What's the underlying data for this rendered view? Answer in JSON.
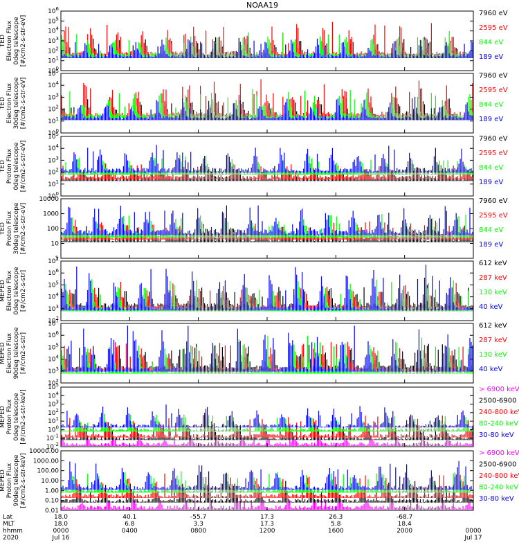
{
  "chart_data": {
    "type": "line",
    "title": "NOAA19",
    "x_axis": {
      "xlim": [
        "00:00",
        "24:00"
      ],
      "tick_hhmm": [
        "0000",
        "0400",
        "0800",
        "1200",
        "1600",
        "2000",
        "0000"
      ],
      "rows": [
        {
          "label": "Lat",
          "values": [
            "18.0",
            "40.1",
            "-55.7",
            "17.3",
            "26.3",
            "-68.7",
            ""
          ]
        },
        {
          "label": "MLT",
          "values": [
            "18.0",
            "6.8",
            "3.3",
            "17.3",
            "5.8",
            "18.4",
            ""
          ]
        },
        {
          "label": "hhmm",
          "values": [
            "0000",
            "0400",
            "0800",
            "1200",
            "1600",
            "2000",
            "0000"
          ]
        },
        {
          "label": "2020",
          "values": [
            "Jul 16",
            "",
            "",
            "",
            "",
            "",
            "Jul 17"
          ]
        }
      ]
    },
    "panels": [
      {
        "ylabel": [
          "TED",
          "Electron Flux",
          "0deg telescope",
          "[#/cm2-s-str-eV]"
        ],
        "scale": "log",
        "ylim": [
          1,
          1000000
        ],
        "ticks": [
          {
            "v": 1,
            "t": "10^0"
          },
          {
            "v": 10,
            "t": "10^1"
          },
          {
            "v": 100,
            "t": "10^2"
          },
          {
            "v": 1000,
            "t": "10^3"
          },
          {
            "v": 10000,
            "t": "10^4"
          },
          {
            "v": 100000,
            "t": "10^5"
          },
          {
            "v": 1000000,
            "t": "10^6"
          }
        ],
        "series": [
          {
            "name": "7960 eV",
            "color": "#000000",
            "base": 30,
            "peak": 3000
          },
          {
            "name": "2595 eV",
            "color": "#ff0000",
            "base": 60,
            "peak": 100000
          },
          {
            "name": "844 eV",
            "color": "#00ff00",
            "base": 40,
            "peak": 10000
          },
          {
            "name": "189 eV",
            "color": "#0000ff",
            "base": 30,
            "peak": 2000
          }
        ]
      },
      {
        "ylabel": [
          "TED",
          "Electron Flux",
          "30deg telescope",
          "[#/cm2-s-str-eV]"
        ],
        "scale": "log",
        "ylim": [
          1,
          100000
        ],
        "ticks": [
          {
            "v": 1,
            "t": "10^0"
          },
          {
            "v": 10,
            "t": "10^1"
          },
          {
            "v": 100,
            "t": "10^2"
          },
          {
            "v": 1000,
            "t": "10^3"
          },
          {
            "v": 10000,
            "t": "10^4"
          },
          {
            "v": 100000,
            "t": "10^5"
          }
        ],
        "series": [
          {
            "name": "7960 eV",
            "color": "#000000",
            "base": 20,
            "peak": 1000
          },
          {
            "name": "2595 eV",
            "color": "#ff0000",
            "base": 40,
            "peak": 30000
          },
          {
            "name": "844 eV",
            "color": "#00ff00",
            "base": 30,
            "peak": 5000
          },
          {
            "name": "189 eV",
            "color": "#0000ff",
            "base": 20,
            "peak": 1000
          }
        ]
      },
      {
        "ylabel": [
          "TED",
          "Proton Flux",
          "0deg telescope",
          "[#/cm2-s-str-eV]"
        ],
        "scale": "log",
        "ylim": [
          1,
          100000
        ],
        "ticks": [
          {
            "v": 1,
            "t": "10^0"
          },
          {
            "v": 10,
            "t": "10^1"
          },
          {
            "v": 100,
            "t": "10^2"
          },
          {
            "v": 1000,
            "t": "10^3"
          },
          {
            "v": 10000,
            "t": "10^4"
          },
          {
            "v": 100000,
            "t": "10^5"
          }
        ],
        "series": [
          {
            "name": "7960 eV",
            "color": "#000000",
            "base": 30,
            "peak": 300
          },
          {
            "name": "2595 eV",
            "color": "#ff0000",
            "base": 40,
            "peak": 500
          },
          {
            "name": "844 eV",
            "color": "#00ff00",
            "base": 100,
            "peak": 3000
          },
          {
            "name": "189 eV",
            "color": "#0000ff",
            "base": 150,
            "peak": 20000
          }
        ]
      },
      {
        "ylabel": [
          "TED",
          "Proton Flux",
          "30deg telescope",
          "[#/cm2-s-str-eV]"
        ],
        "scale": "log",
        "ylim": [
          1,
          10000
        ],
        "ticks": [
          {
            "v": 1,
            "t": "1"
          },
          {
            "v": 10,
            "t": "10"
          },
          {
            "v": 100,
            "t": "100"
          },
          {
            "v": 1000,
            "t": "1000"
          },
          {
            "v": 10000,
            "t": "10000"
          }
        ],
        "series": [
          {
            "name": "7960 eV",
            "color": "#000000",
            "base": 20,
            "peak": 200
          },
          {
            "name": "2595 eV",
            "color": "#ff0000",
            "base": 30,
            "peak": 300
          },
          {
            "name": "844 eV",
            "color": "#00ff00",
            "base": 40,
            "peak": 1000
          },
          {
            "name": "189 eV",
            "color": "#0000ff",
            "base": 60,
            "peak": 5000
          }
        ]
      },
      {
        "ylabel": [
          "MEPED",
          "Electron Flux",
          "0deg telescope",
          "[#/cm2-s-str]"
        ],
        "scale": "log",
        "ylim": [
          100,
          10000000
        ],
        "ticks": [
          {
            "v": 100,
            "t": "10^2"
          },
          {
            "v": 1000,
            "t": "10^3"
          },
          {
            "v": 10000,
            "t": "10^4"
          },
          {
            "v": 100000,
            "t": "10^5"
          },
          {
            "v": 1000000,
            "t": "10^6"
          },
          {
            "v": 10000000,
            "t": "10^7"
          }
        ],
        "series": [
          {
            "name": "612 keV",
            "color": "#000000",
            "base": 2000,
            "peak": 100000
          },
          {
            "name": "287 keV",
            "color": "#ff0000",
            "base": 1500,
            "peak": 200000
          },
          {
            "name": "130 keV",
            "color": "#00ff00",
            "base": 1000,
            "peak": 500000
          },
          {
            "name": "40 keV",
            "color": "#0000ff",
            "base": 1200,
            "peak": 5000000
          }
        ]
      },
      {
        "ylabel": [
          "MEPED",
          "Electron Flux",
          "90deg telescope",
          "[#/cm2-s-str]"
        ],
        "scale": "log",
        "ylim": [
          100,
          10000000
        ],
        "ticks": [
          {
            "v": 100,
            "t": "10^2"
          },
          {
            "v": 1000,
            "t": "10^3"
          },
          {
            "v": 10000,
            "t": "10^4"
          },
          {
            "v": 100000,
            "t": "10^5"
          },
          {
            "v": 1000000,
            "t": "10^6"
          },
          {
            "v": 10000000,
            "t": "10^7"
          }
        ],
        "series": [
          {
            "name": "612 keV",
            "color": "#000000",
            "base": 2000,
            "peak": 200000
          },
          {
            "name": "287 keV",
            "color": "#ff0000",
            "base": 1500,
            "peak": 300000
          },
          {
            "name": "130 keV",
            "color": "#00ff00",
            "base": 1000,
            "peak": 1000000
          },
          {
            "name": "40 keV",
            "color": "#0000ff",
            "base": 1500,
            "peak": 10000000
          }
        ]
      },
      {
        "ylabel": [
          "MEPED",
          "Proton Flux",
          "0deg telescope",
          "[#/cm2-s-str-keV]"
        ],
        "scale": "log",
        "ylim": [
          0.01,
          100000
        ],
        "ticks": [
          {
            "v": 0.01,
            "t": "10^-2"
          },
          {
            "v": 0.1,
            "t": "10^-1"
          },
          {
            "v": 1,
            "t": "10^0"
          },
          {
            "v": 10,
            "t": "10^1"
          },
          {
            "v": 100,
            "t": "10^2"
          },
          {
            "v": 1000,
            "t": "10^3"
          },
          {
            "v": 10000,
            "t": "10^4"
          },
          {
            "v": 100000,
            "t": "10^5"
          }
        ],
        "series": [
          {
            "name": "> 6900 keV",
            "color": "#ff00ff",
            "base": 0.02,
            "peak": 0.2
          },
          {
            "name": "2500-6900",
            "color": "#000000",
            "base": 0.1,
            "peak": 10
          },
          {
            "name": "240-800 keV",
            "color": "#ff0000",
            "base": 0.2,
            "peak": 50
          },
          {
            "name": "80-240 keV",
            "color": "#00ff00",
            "base": 1,
            "peak": 100
          },
          {
            "name": "30-80 keV",
            "color": "#0000ff",
            "base": 3,
            "peak": 1000
          }
        ]
      },
      {
        "ylabel": [
          "MEPED",
          "Proton Flux",
          "90deg telescope",
          "[#/cm2-s-str-keV]"
        ],
        "scale": "log",
        "ylim": [
          0.01,
          10000
        ],
        "ticks": [
          {
            "v": 0.01,
            "t": "0.01"
          },
          {
            "v": 0.1,
            "t": "0.10"
          },
          {
            "v": 1,
            "t": "1.00"
          },
          {
            "v": 10,
            "t": "10.00"
          },
          {
            "v": 100,
            "t": "100.00"
          },
          {
            "v": 1000,
            "t": "1000.00"
          },
          {
            "v": 10000,
            "t": "10000.00"
          }
        ],
        "series": [
          {
            "name": "> 6900 keV",
            "color": "#ff00ff",
            "base": 0.02,
            "peak": 0.2
          },
          {
            "name": "2500-6900",
            "color": "#000000",
            "base": 0.1,
            "peak": 10
          },
          {
            "name": "240-800 keV",
            "color": "#ff0000",
            "base": 0.3,
            "peak": 50
          },
          {
            "name": "80-240 keV",
            "color": "#00ff00",
            "base": 1,
            "peak": 100
          },
          {
            "name": "30-80 keV",
            "color": "#0000ff",
            "base": 2,
            "peak": 1000
          }
        ]
      }
    ]
  }
}
